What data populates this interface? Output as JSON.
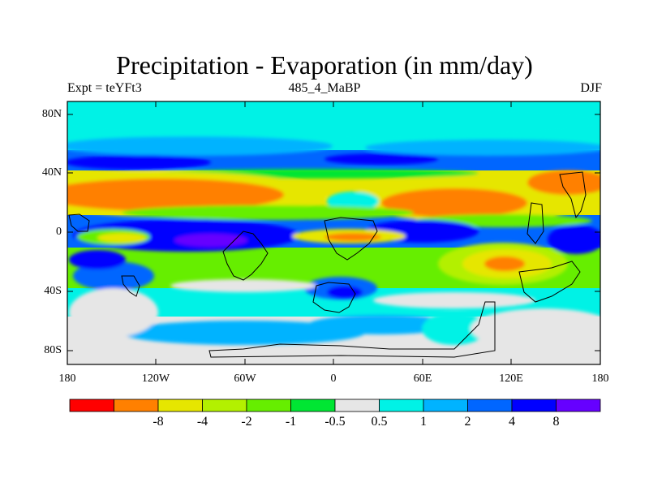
{
  "title": "Precipitation - Evaporation (in mm/day)",
  "subtitle_left": "Expt = teYFt3",
  "subtitle_center": "485_4_MaBP",
  "subtitle_right": "DJF",
  "lat_labels": [
    "80N",
    "40N",
    "0",
    "40S",
    "80S"
  ],
  "lon_labels": [
    "180",
    "120W",
    "60W",
    "0",
    "60E",
    "120E",
    "180"
  ],
  "colorbar": {
    "colors": [
      "#ff0000",
      "#ff8000",
      "#e6e600",
      "#b3f000",
      "#66ee00",
      "#00e633",
      "#e6e6e6",
      "#00f2e6",
      "#00b3ff",
      "#0066ff",
      "#0000ff",
      "#6600ff"
    ],
    "labels": [
      "-8",
      "-4",
      "-2",
      "-1",
      "-0.5",
      "0.5",
      "1",
      "2",
      "4",
      "8"
    ]
  },
  "palette": {
    "strong_neg": "#ff0000",
    "neg8": "#ff8000",
    "neg4": "#e6e600",
    "neg2": "#b3f000",
    "neg1": "#66ee00",
    "neg05": "#00e633",
    "neutral": "#e6e6e6",
    "pos05": "#00f2e6",
    "pos1": "#00b3ff",
    "pos2": "#0066ff",
    "pos4": "#0000ff",
    "pos8": "#6600ff"
  }
}
